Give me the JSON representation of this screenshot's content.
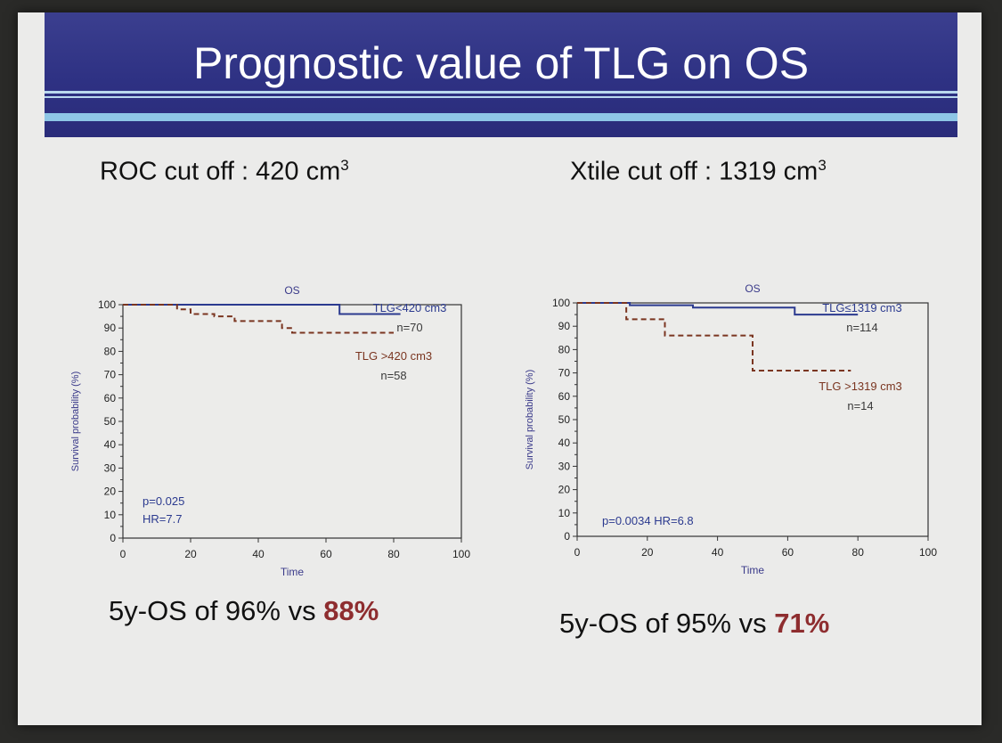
{
  "slide": {
    "title": "Prognostic value of TLG on OS",
    "left_heading": "ROC cut off : 420 cm",
    "right_heading": "Xtile cut off : 1319 cm",
    "heading_superscript": "3",
    "left_summary_prefix": "5y-OS of 96%  vs ",
    "left_summary_highlight": "88%",
    "right_summary_prefix": "5y-OS of 95%  vs ",
    "right_summary_highlight": "71%"
  },
  "colors": {
    "banner": "#2e3183",
    "high_risk_highlight": "#8e2d2f",
    "low_group_line": "#2b3a8f",
    "high_group_line": "#7a3520"
  },
  "chart_data": [
    {
      "type": "line",
      "title": "OS",
      "xlabel": "Time",
      "ylabel": "Survival probability (%)",
      "xlim": [
        0,
        100
      ],
      "ylim": [
        0,
        100
      ],
      "xticks": [
        0,
        20,
        40,
        60,
        80,
        100
      ],
      "yticks": [
        0,
        10,
        20,
        30,
        40,
        50,
        60,
        70,
        80,
        90,
        100
      ],
      "grid": false,
      "series": [
        {
          "name": "TLG<420 cm3",
          "n_label": "n=70",
          "style": "solid",
          "x": [
            0,
            64,
            64,
            82
          ],
          "y": [
            100,
            100,
            96,
            96
          ]
        },
        {
          "name": "TLG >420 cm3",
          "n_label": "n=58",
          "style": "dashed",
          "x": [
            0,
            16,
            16,
            20,
            20,
            27,
            27,
            33,
            33,
            47,
            47,
            50,
            50,
            80
          ],
          "y": [
            100,
            100,
            98,
            98,
            96,
            96,
            95,
            95,
            93,
            93,
            90,
            90,
            88,
            88
          ]
        }
      ],
      "annotations": [
        "p=0.025",
        "HR=7.7"
      ]
    },
    {
      "type": "line",
      "title": "OS",
      "xlabel": "Time",
      "ylabel": "Survival probability (%)",
      "xlim": [
        0,
        100
      ],
      "ylim": [
        0,
        100
      ],
      "xticks": [
        0,
        20,
        40,
        60,
        80,
        100
      ],
      "yticks": [
        0,
        10,
        20,
        30,
        40,
        50,
        60,
        70,
        80,
        90,
        100
      ],
      "grid": false,
      "series": [
        {
          "name": "TLG≤1319 cm3",
          "n_label": "n=114",
          "style": "solid",
          "x": [
            0,
            15,
            15,
            33,
            33,
            62,
            62,
            80
          ],
          "y": [
            100,
            100,
            99,
            99,
            98,
            98,
            95,
            95
          ]
        },
        {
          "name": "TLG >1319 cm3",
          "n_label": "n=14",
          "style": "dashed",
          "x": [
            0,
            14,
            14,
            25,
            25,
            50,
            50,
            78
          ],
          "y": [
            100,
            100,
            93,
            93,
            86,
            86,
            71,
            71
          ]
        }
      ],
      "annotations": [
        "p=0.0034  HR=6.8"
      ]
    }
  ]
}
